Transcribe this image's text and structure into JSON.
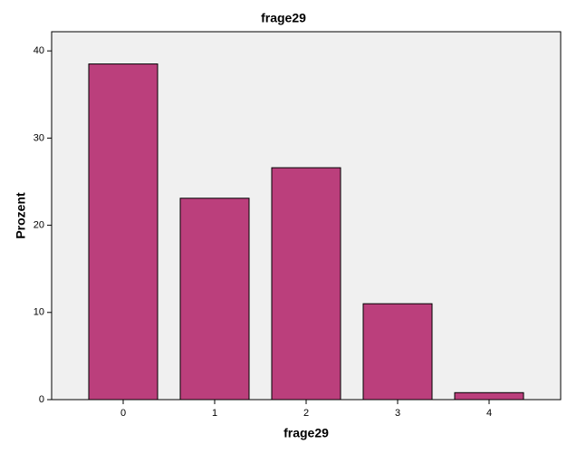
{
  "chart_data": {
    "type": "bar",
    "title": "frage29",
    "x_label": "frage29",
    "y_label": "Prozent",
    "categories": [
      "0",
      "1",
      "2",
      "3",
      "4"
    ],
    "values": [
      38.5,
      23.1,
      26.6,
      11.0,
      0.8
    ],
    "color": "#bb3f7c",
    "ylim": [
      0,
      42.2
    ],
    "yticks": [
      0,
      10,
      20,
      30,
      40
    ],
    "grid": false
  }
}
